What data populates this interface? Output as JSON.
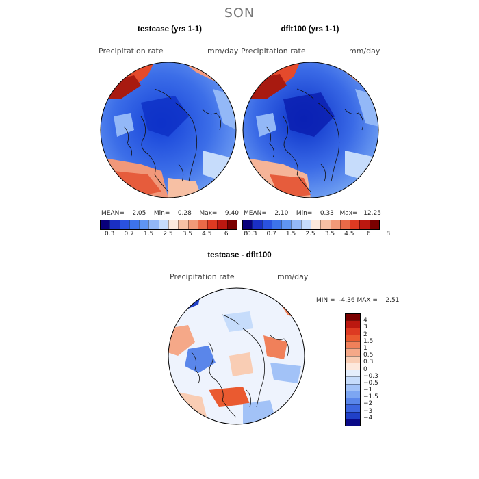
{
  "figure": {
    "title": "SON"
  },
  "panels": [
    {
      "id": "testcase",
      "title": "testcase (yrs 1-1)",
      "variable": "Precipitation rate",
      "units": "mm/day",
      "stats": {
        "mean_label": "MEAN=",
        "mean": "2.05",
        "min_label": "Min=",
        "min": "0.28",
        "max_label": "Max=",
        "max": "9.40"
      },
      "colorbar": {
        "colors": [
          "#08007a",
          "#1a2fc4",
          "#2a52e0",
          "#3d73ea",
          "#5f95f2",
          "#93b8f7",
          "#c6dcfb",
          "#fbe8dc",
          "#f7c0a4",
          "#f29a78",
          "#ea6a48",
          "#dd3a22",
          "#bb1810",
          "#7a0000"
        ],
        "ticks": [
          "0.3",
          "0.7",
          "1.5",
          "2.5",
          "3.5",
          "4.5",
          "6",
          "8"
        ]
      }
    },
    {
      "id": "dflt100",
      "title": "dflt100 (yrs 1-1)",
      "variable": "Precipitation rate",
      "units": "mm/day",
      "stats": {
        "mean_label": "MEAN=",
        "mean": "2.10",
        "min_label": "Min=",
        "min": "0.33",
        "max_label": "Max=",
        "max": "12.25"
      },
      "colorbar": {
        "colors": [
          "#08007a",
          "#1a2fc4",
          "#2a52e0",
          "#3d73ea",
          "#5f95f2",
          "#93b8f7",
          "#c6dcfb",
          "#fbe8dc",
          "#f7c0a4",
          "#f29a78",
          "#ea6a48",
          "#dd3a22",
          "#bb1810",
          "#7a0000"
        ],
        "ticks": [
          "0.3",
          "0.7",
          "1.5",
          "2.5",
          "3.5",
          "4.5",
          "6",
          "8"
        ]
      }
    },
    {
      "id": "diff",
      "title": "testcase - dflt100",
      "variable": "Precipitation rate",
      "units": "mm/day",
      "stats": {
        "min_label": "MIN =",
        "min": "-4.36",
        "max_label": "MAX =",
        "max": "2.51"
      },
      "colorbar": {
        "colors": [
          "#7a0000",
          "#bb1810",
          "#dd3a22",
          "#ea5a30",
          "#f0805a",
          "#f5a888",
          "#f9cdb4",
          "#fde8dc",
          "#e4eefc",
          "#c6dcfb",
          "#a2c2f7",
          "#7da6f2",
          "#5a86ea",
          "#3d66e0",
          "#2040c8",
          "#0a0a88"
        ],
        "ticks": [
          "4",
          "3",
          "2",
          "1.5",
          "1",
          "0.5",
          "0.3",
          "0",
          "−0.3",
          "−0.5",
          "−1",
          "−1.5",
          "−2",
          "−3",
          "−4"
        ]
      }
    }
  ]
}
